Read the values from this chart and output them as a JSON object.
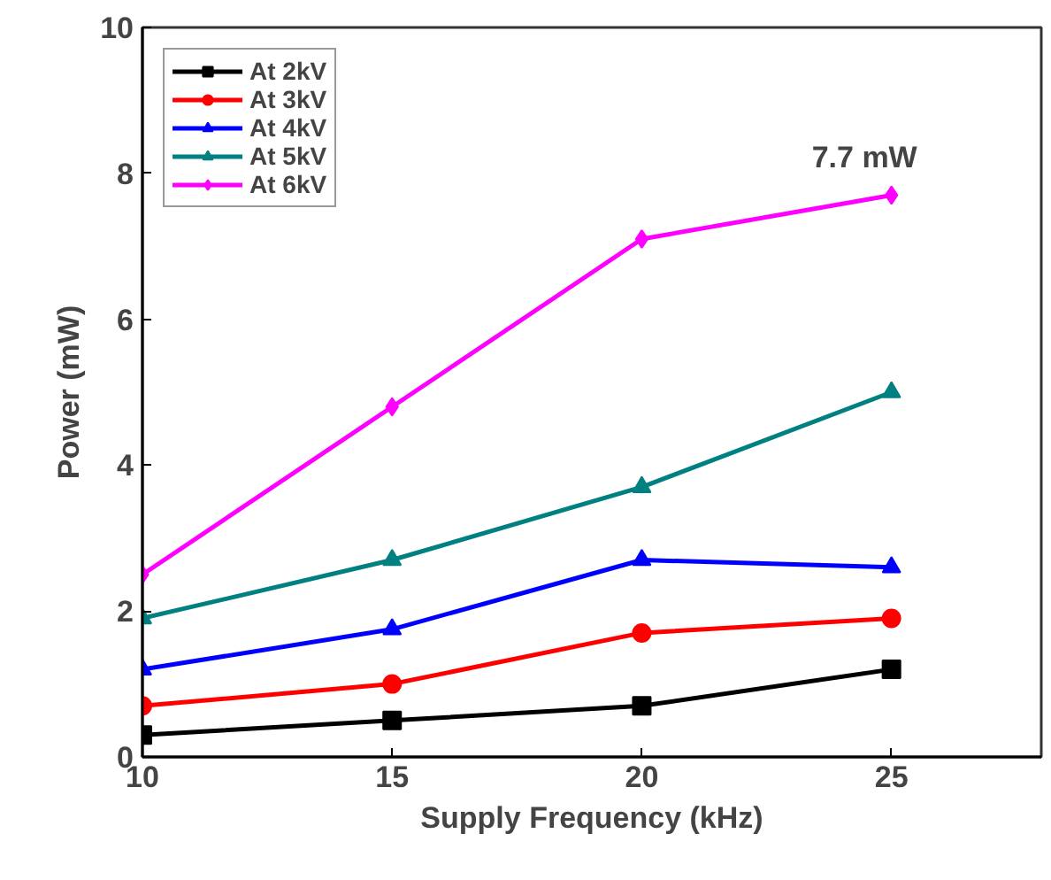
{
  "chart_data": {
    "type": "line",
    "xlabel": "Supply Frequency (kHz)",
    "ylabel": "Power (mW)",
    "x": [
      10,
      15,
      20,
      25
    ],
    "series": [
      {
        "name": "At 2kV",
        "color": "#000000",
        "marker": "square",
        "values": [
          0.3,
          0.5,
          0.7,
          1.2
        ]
      },
      {
        "name": "At 3kV",
        "color": "#ff0000",
        "marker": "circle",
        "values": [
          0.7,
          1.0,
          1.7,
          1.9
        ]
      },
      {
        "name": "At 4kV",
        "color": "#0000ff",
        "marker": "triangle",
        "values": [
          1.2,
          1.75,
          2.7,
          2.6
        ]
      },
      {
        "name": "At 5kV",
        "color": "#008080",
        "marker": "triangle",
        "values": [
          1.9,
          2.7,
          3.7,
          5.0
        ]
      },
      {
        "name": "At 6kV",
        "color": "#ff00ff",
        "marker": "diamond",
        "values": [
          2.5,
          4.8,
          7.1,
          7.7
        ]
      }
    ],
    "annotations": [
      {
        "text": "7.7 mW",
        "x": 25,
        "y": 7.7
      }
    ],
    "xlim": [
      10,
      28
    ],
    "xticks": [
      10,
      15,
      20,
      25
    ],
    "ylim": [
      0,
      10
    ],
    "yticks": [
      0,
      2,
      4,
      6,
      8,
      10
    ],
    "grid": false,
    "legend": "top left",
    "line_style": "solid"
  }
}
